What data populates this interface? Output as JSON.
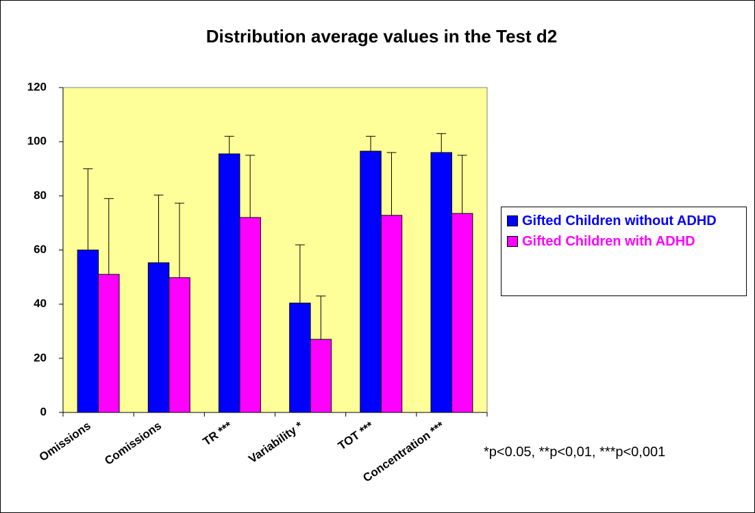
{
  "chart_data": {
    "type": "bar",
    "title": "Distribution average values in the Test d2",
    "categories": [
      "Omissions",
      "Comissions",
      "TR ***",
      "Variability *",
      "TOT ***",
      "Concentration ***"
    ],
    "series": [
      {
        "name": "Gifted Children without ADHD",
        "color": "#0000ff",
        "values": [
          60,
          55.3,
          95.5,
          40.4,
          96.5,
          96
        ],
        "errors": [
          30,
          25,
          6.5,
          21.5,
          5.5,
          7
        ]
      },
      {
        "name": "Gifted Children with ADHD",
        "color": "#ff00ff",
        "values": [
          51,
          49.8,
          72,
          27,
          72.8,
          73.5
        ],
        "errors": [
          28,
          27.5,
          23,
          16,
          23.2,
          21.5
        ]
      }
    ],
    "ylim": [
      0,
      120
    ],
    "yticks": [
      0,
      20,
      40,
      60,
      80,
      100,
      120
    ],
    "plot_background": "#ffff99",
    "legend": "right",
    "annotation": "*p<0.05, **p<0,01, ***p<0,001"
  }
}
